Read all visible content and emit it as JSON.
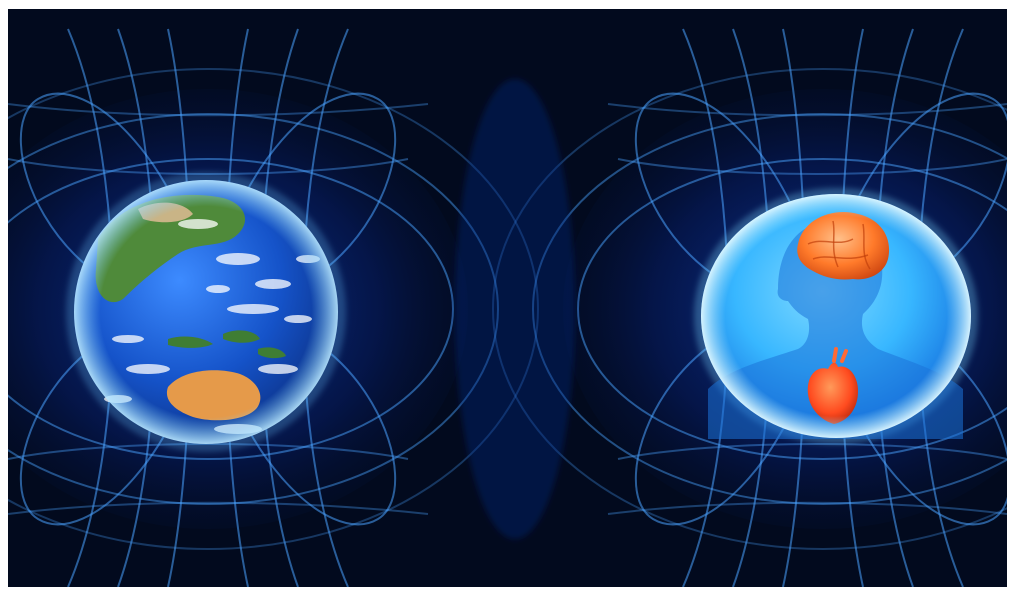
{
  "image": {
    "background_color": "#020a1e",
    "field_line_color": "#4aa3ff",
    "glow_color": "#1e6bff"
  },
  "left_panel": {
    "subject": "earth-globe",
    "ocean_color": "#1553c9",
    "land_color": "#4f8a3a",
    "australia_color": "#e59a4a",
    "cloud_color": "#ffffff"
  },
  "right_panel": {
    "subject": "human-silhouette-bubble",
    "bubble_color": "#38b7ff",
    "brain_color": "#ff7a2a",
    "heart_color": "#ff4b1f"
  }
}
